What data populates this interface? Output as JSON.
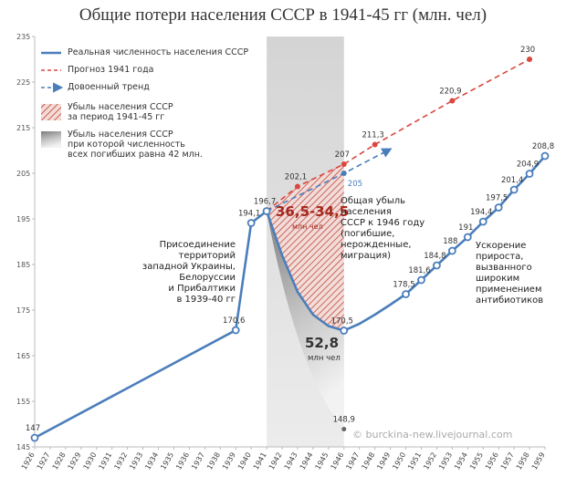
{
  "chart_data": {
    "type": "line",
    "title": "Общие потери населения СССР в 1941-45 гг (млн. чел)",
    "xlim": [
      1926,
      1959
    ],
    "ylim": [
      145,
      235
    ],
    "xticks": [
      1926,
      1927,
      1928,
      1929,
      1930,
      1931,
      1932,
      1933,
      1934,
      1935,
      1936,
      1937,
      1938,
      1939,
      1940,
      1941,
      1942,
      1943,
      1944,
      1945,
      1946,
      1947,
      1948,
      1949,
      1950,
      1951,
      1952,
      1953,
      1954,
      1955,
      1956,
      1957,
      1958,
      1959
    ],
    "yticks": [
      145,
      155,
      165,
      175,
      185,
      195,
      205,
      215,
      225,
      235
    ],
    "series": [
      {
        "name": "Реальная численность населения СССР",
        "color": "#4a7ebb",
        "style": "solid",
        "x": [
          1926,
          1939,
          1940,
          1941,
          1942,
          1943,
          1944,
          1945,
          1946,
          1947,
          1948,
          1949,
          1950,
          1951,
          1952,
          1953,
          1954,
          1955,
          1956,
          1957,
          1958,
          1959
        ],
        "values": [
          147,
          170.6,
          194.1,
          196.7,
          187,
          179,
          174,
          171.5,
          170.5,
          172,
          174,
          176.2,
          178.5,
          181.6,
          184.8,
          188,
          191,
          194.4,
          197.5,
          201.4,
          204.9,
          208.8
        ],
        "value_labels": [
          "147",
          "170,6",
          "194,1",
          "196,7",
          null,
          null,
          null,
          null,
          "170,5",
          null,
          null,
          null,
          "178,5",
          "181,6",
          "184,8",
          "188",
          "191",
          "194,4",
          "197,5",
          "201,4",
          "204,9",
          "208,8"
        ]
      },
      {
        "name": "Прогноз 1941 года",
        "color": "#d9473f",
        "style": "dashed",
        "x": [
          1941,
          1943,
          1946,
          1948,
          1953,
          1958
        ],
        "values": [
          196.7,
          202.1,
          207,
          211.3,
          220.9,
          230
        ],
        "value_labels": [
          null,
          "202,1",
          "207",
          "211,3",
          "220,9",
          "230"
        ]
      },
      {
        "name": "Довоенный тренд",
        "color": "#4a7ebb",
        "style": "dashed",
        "arrow": true,
        "x": [
          1941,
          1946,
          1949
        ],
        "values": [
          196.7,
          205,
          210.3
        ],
        "value_labels": [
          null,
          "205",
          null
        ]
      }
    ],
    "areas": [
      {
        "name": "Убыль населения СССР\nза период 1941-45 гг",
        "color": "#c0392b"
      },
      {
        "name": "Убыль населения СССР\nпри которой численность\nвсех погибших равна 42 млн.",
        "color": "#8c8c8c",
        "x": [
          1941,
          1946
        ],
        "values": [
          196.7,
          148.9
        ],
        "value_labels": [
          null,
          "148,9"
        ]
      }
    ],
    "annotations": [
      {
        "text": "36,5-34,5",
        "color": "#a5281e"
      },
      {
        "text": "млн чел",
        "color": "#a5281e"
      },
      {
        "text": "52,8",
        "color": "#333333"
      },
      {
        "text": "млн чел",
        "color": "#333333"
      },
      {
        "text": "Присоединение\nтерриторий\nзападной Украины,\nБелоруссии\nи Прибалтики\nв 1939-40 гг",
        "color": "#222222"
      },
      {
        "text": "Общая убыль\nнаселения\nСССР к 1946 году\n(погибшие,\nнерожденные,\nмиграция)",
        "color": "#222222"
      },
      {
        "text": "Ускорение\nприроста,\nвызванного\nшироким\nприменением\nантибиотиков",
        "color": "#222222"
      },
      {
        "text": "© burckina-new.livejournal.com",
        "color": "#aaaaaa"
      }
    ]
  }
}
